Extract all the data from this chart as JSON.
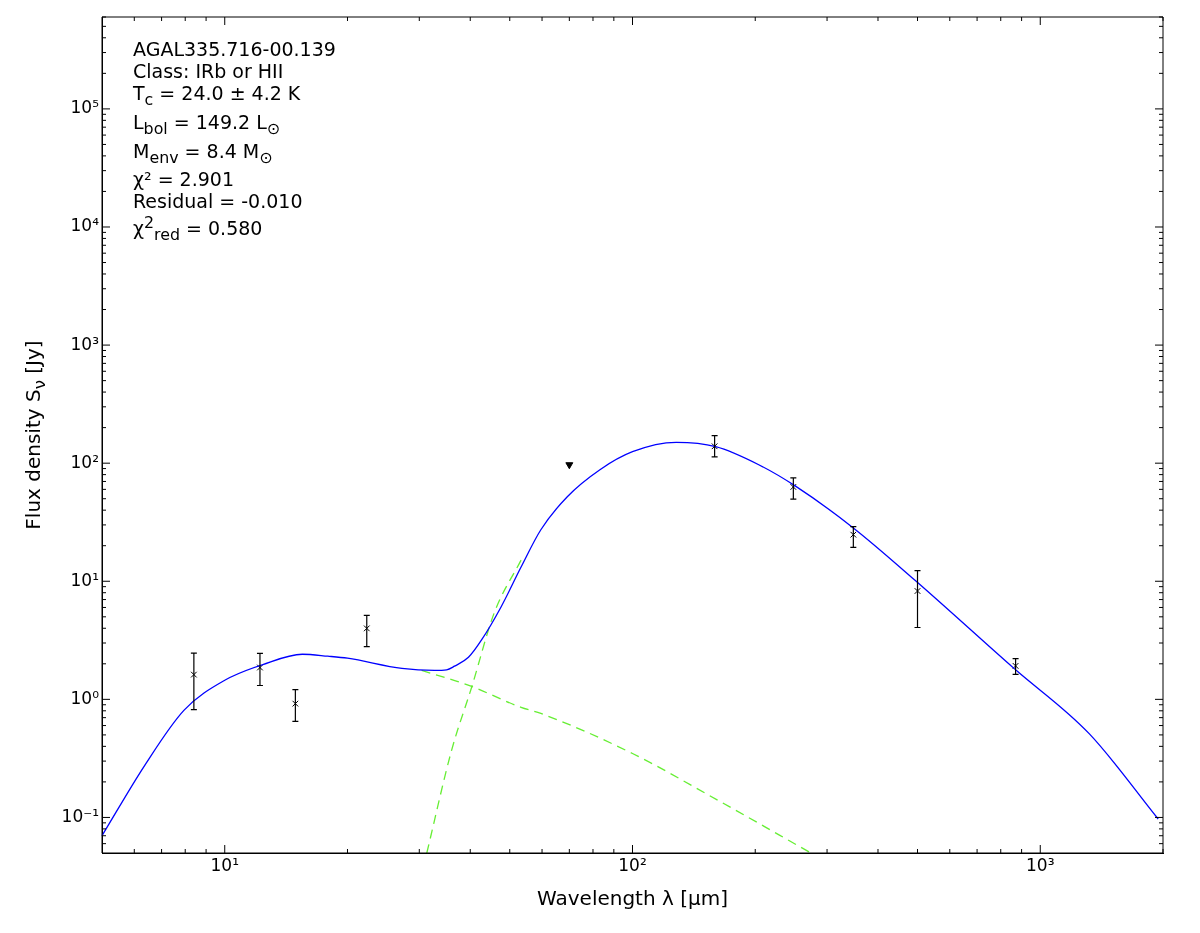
{
  "chart_data": {
    "type": "scatter",
    "xlabel": "Wavelength λ [μm]",
    "ylabel": "Flux density S$_{ν}$ [Jy]",
    "log": "xy",
    "grid": false,
    "legend": false,
    "xlim": [
      5,
      2000
    ],
    "ylim": [
      0.05,
      600000
    ],
    "xticks": [
      {
        "value": 6,
        "label": null
      },
      {
        "value": 7,
        "label": null
      },
      {
        "value": 8,
        "label": null
      },
      {
        "value": 9,
        "label": null
      },
      {
        "value": 10,
        "label": "10¹"
      },
      {
        "value": 20,
        "label": null
      },
      {
        "value": 30,
        "label": null
      },
      {
        "value": 40,
        "label": null
      },
      {
        "value": 50,
        "label": null
      },
      {
        "value": 60,
        "label": null
      },
      {
        "value": 70,
        "label": null
      },
      {
        "value": 80,
        "label": null
      },
      {
        "value": 90,
        "label": null
      },
      {
        "value": 100,
        "label": "10²"
      },
      {
        "value": 200,
        "label": null
      },
      {
        "value": 300,
        "label": null
      },
      {
        "value": 400,
        "label": null
      },
      {
        "value": 500,
        "label": null
      },
      {
        "value": 600,
        "label": null
      },
      {
        "value": 700,
        "label": null
      },
      {
        "value": 800,
        "label": null
      },
      {
        "value": 900,
        "label": null
      },
      {
        "value": 1000,
        "label": "10³"
      },
      {
        "value": 2000,
        "label": null
      }
    ],
    "yticks": [
      {
        "value": 0.06,
        "label": null
      },
      {
        "value": 0.07,
        "label": null
      },
      {
        "value": 0.08,
        "label": null
      },
      {
        "value": 0.09,
        "label": null
      },
      {
        "value": 0.1,
        "label": "10⁻¹"
      },
      {
        "value": 0.2,
        "label": null
      },
      {
        "value": 0.3,
        "label": null
      },
      {
        "value": 0.4,
        "label": null
      },
      {
        "value": 0.5,
        "label": null
      },
      {
        "value": 0.6,
        "label": null
      },
      {
        "value": 0.7,
        "label": null
      },
      {
        "value": 0.8,
        "label": null
      },
      {
        "value": 0.9,
        "label": null
      },
      {
        "value": 1,
        "label": "10⁰"
      },
      {
        "value": 2,
        "label": null
      },
      {
        "value": 3,
        "label": null
      },
      {
        "value": 4,
        "label": null
      },
      {
        "value": 5,
        "label": null
      },
      {
        "value": 6,
        "label": null
      },
      {
        "value": 7,
        "label": null
      },
      {
        "value": 8,
        "label": null
      },
      {
        "value": 9,
        "label": null
      },
      {
        "value": 10,
        "label": "10¹"
      },
      {
        "value": 20,
        "label": null
      },
      {
        "value": 30,
        "label": null
      },
      {
        "value": 40,
        "label": null
      },
      {
        "value": 50,
        "label": null
      },
      {
        "value": 60,
        "label": null
      },
      {
        "value": 70,
        "label": null
      },
      {
        "value": 80,
        "label": null
      },
      {
        "value": 90,
        "label": null
      },
      {
        "value": 100,
        "label": "10²"
      },
      {
        "value": 200,
        "label": null
      },
      {
        "value": 300,
        "label": null
      },
      {
        "value": 400,
        "label": null
      },
      {
        "value": 500,
        "label": null
      },
      {
        "value": 600,
        "label": null
      },
      {
        "value": 700,
        "label": null
      },
      {
        "value": 800,
        "label": null
      },
      {
        "value": 900,
        "label": null
      },
      {
        "value": 1000,
        "label": "10³"
      },
      {
        "value": 2000,
        "label": null
      },
      {
        "value": 3000,
        "label": null
      },
      {
        "value": 4000,
        "label": null
      },
      {
        "value": 5000,
        "label": null
      },
      {
        "value": 6000,
        "label": null
      },
      {
        "value": 7000,
        "label": null
      },
      {
        "value": 8000,
        "label": null
      },
      {
        "value": 9000,
        "label": null
      },
      {
        "value": 10000,
        "label": "10⁴"
      },
      {
        "value": 20000,
        "label": null
      },
      {
        "value": 30000,
        "label": null
      },
      {
        "value": 40000,
        "label": null
      },
      {
        "value": 50000,
        "label": null
      },
      {
        "value": 60000,
        "label": null
      },
      {
        "value": 70000,
        "label": null
      },
      {
        "value": 80000,
        "label": null
      },
      {
        "value": 90000,
        "label": null
      },
      {
        "value": 100000,
        "label": "10⁵"
      },
      {
        "value": 200000,
        "label": null
      },
      {
        "value": 300000,
        "label": null
      },
      {
        "value": 400000,
        "label": null
      },
      {
        "value": 500000,
        "label": null
      },
      {
        "value": 600000,
        "label": null
      }
    ],
    "annotations": [
      "AGAL335.716-00.139",
      "Class: IRb or HII",
      "T$_{c}$ = 24.0 ± 4.2 K",
      "L$_{bol}$ = 149.2 L$_{⊙}$",
      "M$_{env}$ = 8.4 M$_{⊙}$",
      "χ² = 2.901",
      "Residual = -0.010",
      "χ$^{2}$$_{red}$ = 0.580"
    ],
    "series": [
      {
        "type": "line",
        "color": "#0000ff",
        "line_style": "solid",
        "marker": "none",
        "x": [
          5,
          6.36,
          7.95,
          10,
          12.4,
          15.5,
          17.9,
          20,
          27.2,
          32.7,
          35,
          36.6,
          39.6,
          42.6,
          47.6,
          53.3,
          59.6,
          69.2,
          83.2,
          100,
          128,
          160,
          204,
          250,
          348,
          493,
          862,
          1320,
          1946
        ],
        "values": [
          0.07,
          0.275,
          0.81,
          1.45,
          1.97,
          2.41,
          2.32,
          2.23,
          1.83,
          1.76,
          1.78,
          1.91,
          2.27,
          3.17,
          6.06,
          13.2,
          27.3,
          52,
          88,
          125,
          150,
          138,
          97,
          64.5,
          28.3,
          10.2,
          1.83,
          0.51,
          0.097
        ]
      },
      {
        "type": "line",
        "color": "#66ee33",
        "line_style": "dashed",
        "marker": "none",
        "x": [
          30.4,
          40,
          53.3,
          59.6,
          100,
          163,
          274
        ],
        "values": [
          1.76,
          1.3,
          0.855,
          0.76,
          0.348,
          0.138,
          0.05
        ]
      },
      {
        "type": "line",
        "color": "#66ee33",
        "line_style": "dashed",
        "marker": "none",
        "x": [
          31.3,
          36,
          40.3,
          45.8,
          53.3
        ],
        "values": [
          0.05,
          0.37,
          1.26,
          5.4,
          15.1
        ]
      },
      {
        "type": "scatter",
        "color": "#000000",
        "marker": "cross",
        "x": [
          8.4,
          12.2,
          14.9,
          22.3,
          159,
          248,
          348,
          500,
          870
        ],
        "values": [
          1.62,
          1.86,
          0.92,
          3.99,
          139,
          62.9,
          24.8,
          8.27,
          1.92
        ],
        "errors": [
          [
            0.82,
            2.46
          ],
          [
            1.31,
            2.45
          ],
          [
            0.65,
            1.21
          ],
          [
            2.8,
            5.14
          ],
          [
            113,
            171
          ],
          [
            49.7,
            75
          ],
          [
            19.4,
            29
          ],
          [
            4.06,
            12.3
          ],
          [
            1.63,
            2.21
          ]
        ]
      },
      {
        "type": "scatter",
        "color": "#000000",
        "marker": "triangle",
        "x": [
          70
        ],
        "values": [
          97
        ]
      }
    ]
  }
}
